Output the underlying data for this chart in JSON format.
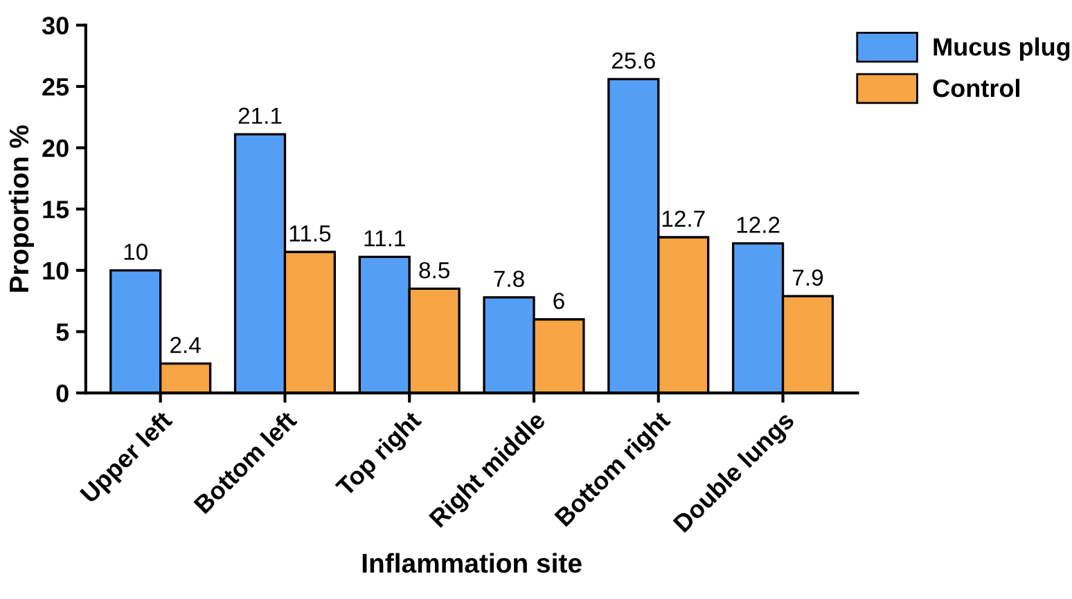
{
  "chart_data": {
    "type": "bar",
    "xlabel": "Inflammation site",
    "ylabel": "Proportion %",
    "categories": [
      "Upper left",
      "Bottom left",
      "Top right",
      "Right middle",
      "Bottom right",
      "Double lungs"
    ],
    "series": [
      {
        "name": "Mucus plug",
        "color": "#559ef6",
        "values": [
          10,
          21.1,
          11.1,
          7.8,
          25.6,
          12.2
        ]
      },
      {
        "name": "Control",
        "color": "#f7a545",
        "values": [
          2.4,
          11.5,
          8.5,
          6,
          12.7,
          7.9
        ]
      }
    ],
    "ylim": [
      0,
      30
    ],
    "yticks": [
      0,
      5,
      10,
      15,
      20,
      25,
      30
    ],
    "data_labels": true,
    "legend": "top right",
    "grid": false
  }
}
